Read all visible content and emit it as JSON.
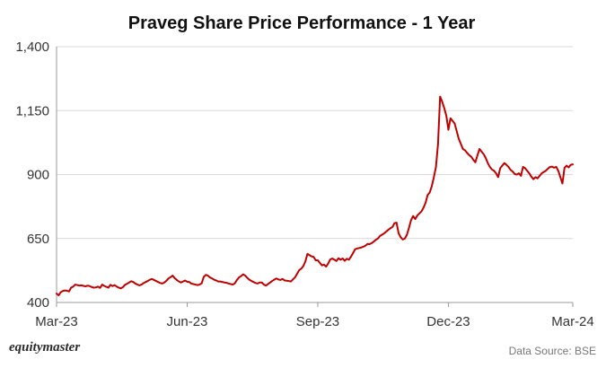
{
  "chart_data": {
    "type": "line",
    "title": "Praveg Share Price Performance - 1 Year",
    "xlabel": "",
    "ylabel": "",
    "ylim": [
      400,
      1400
    ],
    "yticks": [
      400,
      650,
      900,
      1150,
      1400
    ],
    "ytick_labels": [
      "400",
      "650",
      "900",
      "1,150",
      "1,400"
    ],
    "xticks": [
      {
        "label": "Mar-23",
        "index": 0
      },
      {
        "label": "Jun-23",
        "index": 63
      },
      {
        "label": "Sep-23",
        "index": 126
      },
      {
        "label": "Dec-23",
        "index": 189
      },
      {
        "label": "Mar-24",
        "index": 249
      }
    ],
    "grid": true,
    "series": [
      {
        "name": "Praveg",
        "color": "#c00000",
        "values": [
          435,
          428,
          440,
          445,
          447,
          446,
          443,
          458,
          462,
          470,
          468,
          466,
          467,
          465,
          463,
          466,
          464,
          460,
          458,
          459,
          462,
          457,
          470,
          465,
          461,
          458,
          469,
          464,
          468,
          462,
          458,
          455,
          460,
          469,
          473,
          478,
          483,
          480,
          474,
          470,
          467,
          470,
          476,
          480,
          484,
          489,
          492,
          488,
          484,
          480,
          476,
          474,
          478,
          485,
          494,
          499,
          505,
          495,
          488,
          482,
          478,
          482,
          486,
          481,
          480,
          474,
          472,
          470,
          468,
          470,
          475,
          500,
          508,
          505,
          498,
          494,
          489,
          486,
          482,
          482,
          480,
          478,
          477,
          474,
          472,
          470,
          475,
          488,
          498,
          503,
          510,
          505,
          496,
          489,
          484,
          480,
          476,
          474,
          478,
          478,
          470,
          466,
          472,
          478,
          484,
          489,
          494,
          490,
          488,
          492,
          486,
          485,
          484,
          482,
          490,
          498,
          512,
          526,
          532,
          542,
          560,
          590,
          585,
          580,
          578,
          565,
          565,
          555,
          545,
          548,
          540,
          552,
          568,
          572,
          567,
          562,
          573,
          567,
          572,
          563,
          571,
          567,
          579,
          593,
          608,
          611,
          613,
          615,
          618,
          622,
          629,
          628,
          632,
          638,
          645,
          650,
          660,
          665,
          670,
          677,
          684,
          690,
          695,
          710,
          712,
          670,
          655,
          646,
          650,
          665,
          692,
          722,
          738,
          726,
          740,
          748,
          756,
          770,
          790,
          820,
          830,
          855,
          890,
          930,
          1020,
          1205,
          1185,
          1160,
          1130,
          1075,
          1120,
          1110,
          1100,
          1070,
          1040,
          1020,
          1000,
          995,
          985,
          976,
          970,
          958,
          948,
          975,
          1000,
          990,
          980,
          965,
          945,
          930,
          920,
          915,
          905,
          890,
          925,
          935,
          945,
          938,
          930,
          918,
          912,
          902,
          900,
          905,
          895,
          930,
          925,
          915,
          905,
          892,
          882,
          890,
          885,
          895,
          905,
          910,
          915,
          923,
          930,
          931,
          927,
          930,
          915,
          890,
          865,
          926,
          935,
          928,
          938,
          940
        ]
      }
    ]
  },
  "footer": {
    "brand": "equitymaster",
    "source": "Data Source: BSE"
  }
}
